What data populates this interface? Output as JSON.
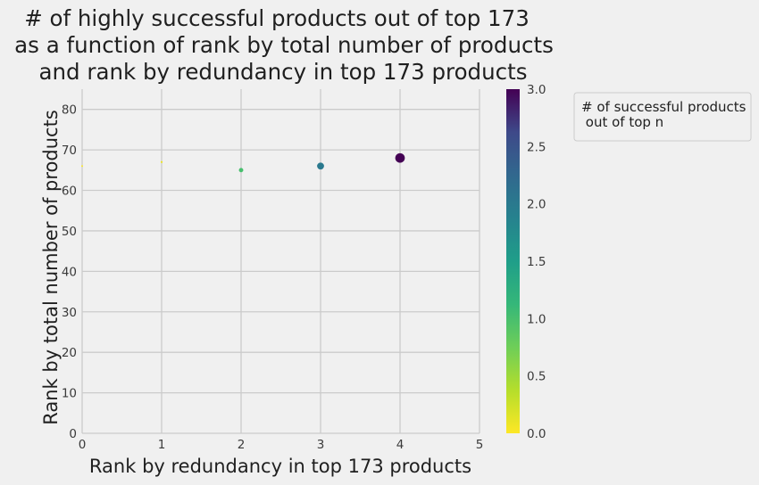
{
  "chart_data": {
    "type": "scatter",
    "title_lines": [
      "# of highly successful products out of top 173",
      "as a function of rank by total number of products",
      "and rank by redundancy in top 173 products"
    ],
    "xlabel": "Rank by redundancy in top 173 products",
    "ylabel": "Rank by total number of products",
    "xlim": [
      0,
      5
    ],
    "ylim": [
      0,
      85
    ],
    "xticks": [
      "0",
      "1",
      "2",
      "3",
      "4",
      "5"
    ],
    "yticks": [
      "0",
      "10",
      "20",
      "30",
      "40",
      "50",
      "60",
      "70",
      "80"
    ],
    "grid": true,
    "points": [
      {
        "x": 0,
        "y": 66,
        "value": 0.0
      },
      {
        "x": 1,
        "y": 67,
        "value": 0.1
      },
      {
        "x": 2,
        "y": 65,
        "value": 1.0
      },
      {
        "x": 3,
        "y": 66,
        "value": 2.0
      },
      {
        "x": 4,
        "y": 68,
        "value": 3.0
      }
    ],
    "colorbar": {
      "colormap": "viridis_r",
      "range": [
        0.0,
        3.0
      ],
      "ticks": [
        "0.0",
        "0.5",
        "1.0",
        "1.5",
        "2.0",
        "2.5",
        "3.0"
      ]
    },
    "legend": {
      "title_lines": [
        "# of successful products",
        " out of top n"
      ],
      "placement": "upper-right outside"
    }
  }
}
